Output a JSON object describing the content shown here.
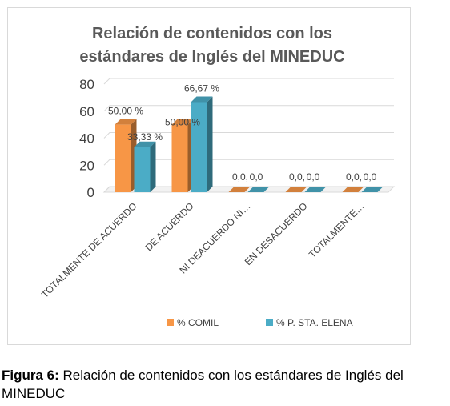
{
  "chart_data": {
    "type": "bar",
    "title_lines": [
      "Relación de contenidos con los",
      "estándares de Inglés del MINEDUC"
    ],
    "categories": [
      "TOTALMENTE DE ACUERDO",
      "DE ACUERDO",
      "NI DEACUERDO NI…",
      "EN DESACUERDO",
      "TOTALMENTE…"
    ],
    "series": [
      {
        "name": "% COMIL",
        "color": "#f79646",
        "values": [
          50,
          50,
          0,
          0,
          0
        ],
        "labels": [
          "50,00 %",
          "50,00 %",
          "0,0",
          "0,0",
          "0,0"
        ]
      },
      {
        "name": "% P. STA. ELENA",
        "color": "#4bacc6",
        "values": [
          33.33,
          66.67,
          0,
          0,
          0
        ],
        "labels": [
          "33,33 %",
          "66,67  %",
          "0,0",
          "0,0",
          "0,0"
        ]
      }
    ],
    "ylim": [
      0,
      80
    ],
    "yticks": [
      0,
      20,
      40,
      60,
      80
    ],
    "grid": true,
    "legend_position": "bottom",
    "style": "3d-clustered-column"
  },
  "caption": {
    "label": "Figura 6:",
    "text": " Relación de contenidos con los estándares de Inglés del MINEDUC"
  }
}
